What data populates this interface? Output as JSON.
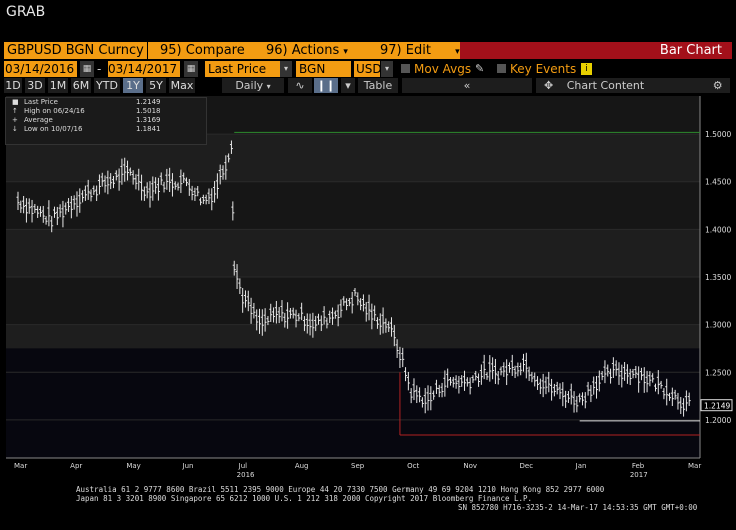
{
  "window": {
    "title": "GRAB"
  },
  "toolbar": {
    "ticker": "GBPUSD BGN Curncy",
    "compare": "95) Compare",
    "actions": "96) Actions",
    "edit": "97) Edit",
    "chart_type": "Bar Chart"
  },
  "settings": {
    "start_date": "03/14/2016",
    "end_date": "03/14/2017",
    "field": "Last Price",
    "source": "BGN",
    "currency": "USD",
    "mov_avgs": "Mov Avgs",
    "key_events": "Key Events"
  },
  "periods": [
    "1D",
    "3D",
    "1M",
    "6M",
    "YTD",
    "1Y",
    "5Y",
    "Max"
  ],
  "active_period": "1Y",
  "frequency": "Daily",
  "table_label": "Table",
  "chart_content": "Chart Content",
  "legend": {
    "items": [
      {
        "label": "Last Price",
        "value": "1.2149"
      },
      {
        "label": "High on 06/24/16",
        "value": "1.5018"
      },
      {
        "label": "Average",
        "value": "1.3169"
      },
      {
        "label": "Low on 10/07/16",
        "value": "1.1841"
      }
    ]
  },
  "chart_data": {
    "type": "bar",
    "ylim": [
      1.16,
      1.54
    ],
    "y_ticks": [
      "1.5000",
      "1.4500",
      "1.4000",
      "1.3500",
      "1.3000",
      "1.2500",
      "1.2000"
    ],
    "y_tick_values": [
      1.5,
      1.45,
      1.4,
      1.35,
      1.3,
      1.25,
      1.2
    ],
    "x_month_labels": [
      "Mar",
      "Apr",
      "May",
      "Jun",
      "Jul",
      "Aug",
      "Sep",
      "Oct",
      "Nov",
      "Dec",
      "Jan",
      "Feb",
      "Mar"
    ],
    "year_labels": [
      {
        "label": "2016",
        "month_index": 4
      },
      {
        "label": "2017",
        "month_index": 11
      }
    ],
    "last_price_label": "1.2149",
    "high_line": 1.5018,
    "low_line": 1.1841,
    "average": 1.3169,
    "series_monthly_points": [
      {
        "m": 0.0,
        "v": 1.43
      },
      {
        "m": 0.3,
        "v": 1.42
      },
      {
        "m": 0.6,
        "v": 1.41
      },
      {
        "m": 1.0,
        "v": 1.43
      },
      {
        "m": 1.3,
        "v": 1.44
      },
      {
        "m": 1.6,
        "v": 1.45
      },
      {
        "m": 2.0,
        "v": 1.46
      },
      {
        "m": 2.3,
        "v": 1.44
      },
      {
        "m": 2.6,
        "v": 1.45
      },
      {
        "m": 3.0,
        "v": 1.45
      },
      {
        "m": 3.3,
        "v": 1.43
      },
      {
        "m": 3.5,
        "v": 1.44
      },
      {
        "m": 3.7,
        "v": 1.47
      },
      {
        "m": 3.8,
        "v": 1.49
      },
      {
        "m": 3.85,
        "v": 1.36
      },
      {
        "m": 4.0,
        "v": 1.33
      },
      {
        "m": 4.3,
        "v": 1.3
      },
      {
        "m": 4.6,
        "v": 1.31
      },
      {
        "m": 5.0,
        "v": 1.31
      },
      {
        "m": 5.3,
        "v": 1.3
      },
      {
        "m": 5.6,
        "v": 1.31
      },
      {
        "m": 6.0,
        "v": 1.33
      },
      {
        "m": 6.3,
        "v": 1.31
      },
      {
        "m": 6.6,
        "v": 1.3
      },
      {
        "m": 6.8,
        "v": 1.27
      },
      {
        "m": 7.0,
        "v": 1.23
      },
      {
        "m": 7.3,
        "v": 1.22
      },
      {
        "m": 7.6,
        "v": 1.24
      },
      {
        "m": 8.0,
        "v": 1.24
      },
      {
        "m": 8.3,
        "v": 1.25
      },
      {
        "m": 8.6,
        "v": 1.25
      },
      {
        "m": 9.0,
        "v": 1.26
      },
      {
        "m": 9.3,
        "v": 1.24
      },
      {
        "m": 9.6,
        "v": 1.23
      },
      {
        "m": 10.0,
        "v": 1.22
      },
      {
        "m": 10.3,
        "v": 1.24
      },
      {
        "m": 10.6,
        "v": 1.25
      },
      {
        "m": 11.0,
        "v": 1.25
      },
      {
        "m": 11.3,
        "v": 1.24
      },
      {
        "m": 11.6,
        "v": 1.23
      },
      {
        "m": 11.8,
        "v": 1.22
      },
      {
        "m": 12.0,
        "v": 1.215
      }
    ]
  },
  "footer": {
    "line1": "Australia 61 2 9777 8600 Brazil 5511 2395 9000 Europe 44 20 7330 7500 Germany 49 69 9204 1210 Hong Kong 852 2977 6000",
    "line2": "Japan 81 3 3201 8900     Singapore 65 6212 1000     U.S. 1 212 318 2000       Copyright 2017 Bloomberg Finance L.P.",
    "line3": "SN 852780 H716-3235-2 14-Mar-17 14:53:35 GMT  GMT+0:00"
  },
  "colors": {
    "orange": "#f39c12",
    "red": "#a3101a",
    "high_line": "#2e8b2e",
    "low_line": "#b22222"
  }
}
